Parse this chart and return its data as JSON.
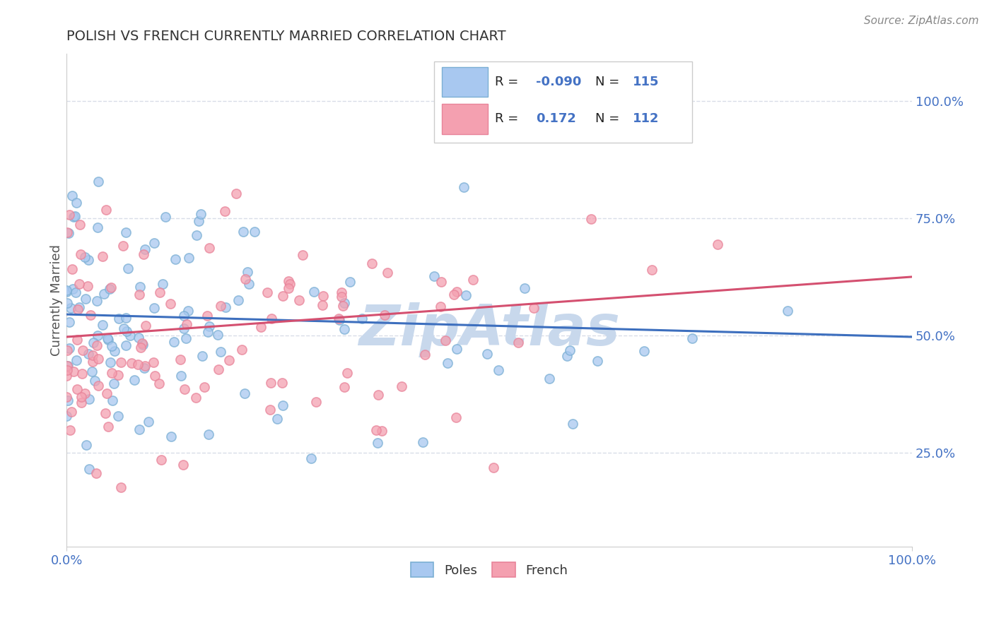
{
  "title": "POLISH VS FRENCH CURRENTLY MARRIED CORRELATION CHART",
  "source": "Source: ZipAtlas.com",
  "ylabel": "Currently Married",
  "ylabel_ticks": [
    "25.0%",
    "50.0%",
    "75.0%",
    "100.0%"
  ],
  "ylabel_tick_vals": [
    0.25,
    0.5,
    0.75,
    1.0
  ],
  "poles_R": -0.09,
  "poles_N": 115,
  "french_R": 0.172,
  "french_N": 112,
  "blue_scatter_color": "#7bafd4",
  "pink_scatter_color": "#e8849a",
  "blue_fill": "#a8c8f0",
  "pink_fill": "#f4a0b0",
  "blue_line_color": "#3d6fbe",
  "pink_line_color": "#d45070",
  "watermark": "ZipAtlas",
  "watermark_color": "#c8d8ec",
  "title_color": "#333333",
  "tick_color": "#4472c4",
  "background_color": "#ffffff",
  "grid_color": "#d8dde8",
  "xlim": [
    0.0,
    1.0
  ],
  "ylim": [
    0.05,
    1.1
  ],
  "trend_blue_start": 0.545,
  "trend_blue_end": 0.497,
  "trend_pink_start": 0.497,
  "trend_pink_end": 0.625
}
